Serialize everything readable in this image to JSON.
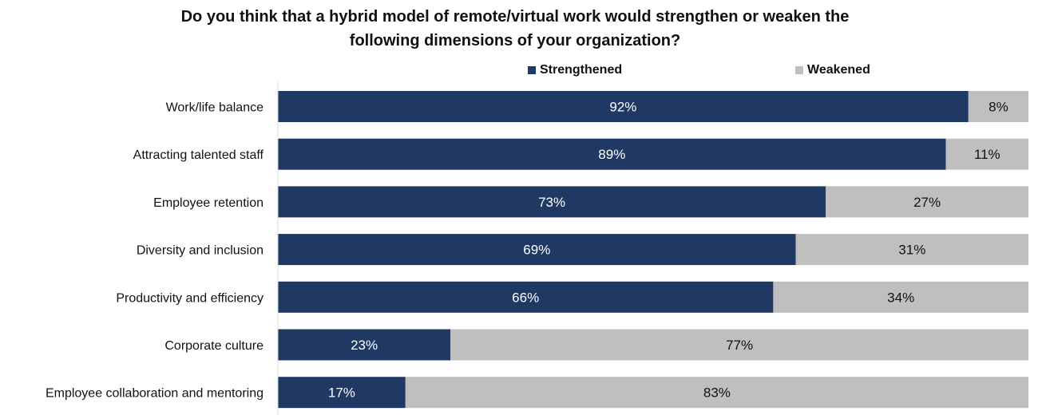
{
  "chart_data": {
    "type": "bar",
    "orientation": "horizontal",
    "stacked": true,
    "title_lines": [
      "Do you think that a hybrid model of remote/virtual work would strengthen or weaken the",
      "following dimensions of your organization?"
    ],
    "categories": [
      "Work/life balance",
      "Attracting talented staff",
      "Employee retention",
      "Diversity and inclusion",
      "Productivity and efficiency",
      "Corporate culture",
      "Employee collaboration and mentoring"
    ],
    "series": [
      {
        "name": "Strengthened",
        "color": "#203864",
        "label_color": "#ffffff",
        "values": [
          92,
          89,
          73,
          69,
          66,
          23,
          17
        ],
        "labels": [
          "92%",
          "89%",
          "73%",
          "69%",
          "66%",
          "23%",
          "17%"
        ]
      },
      {
        "name": "Weakened",
        "color": "#bfbfbf",
        "label_color": "#111111",
        "values": [
          8,
          11,
          27,
          31,
          34,
          77,
          83
        ],
        "labels": [
          "8%",
          "11%",
          "27%",
          "31%",
          "34%",
          "77%",
          "83%"
        ]
      }
    ],
    "xlim": [
      0,
      100
    ],
    "grid": false,
    "legend_position": "top"
  }
}
